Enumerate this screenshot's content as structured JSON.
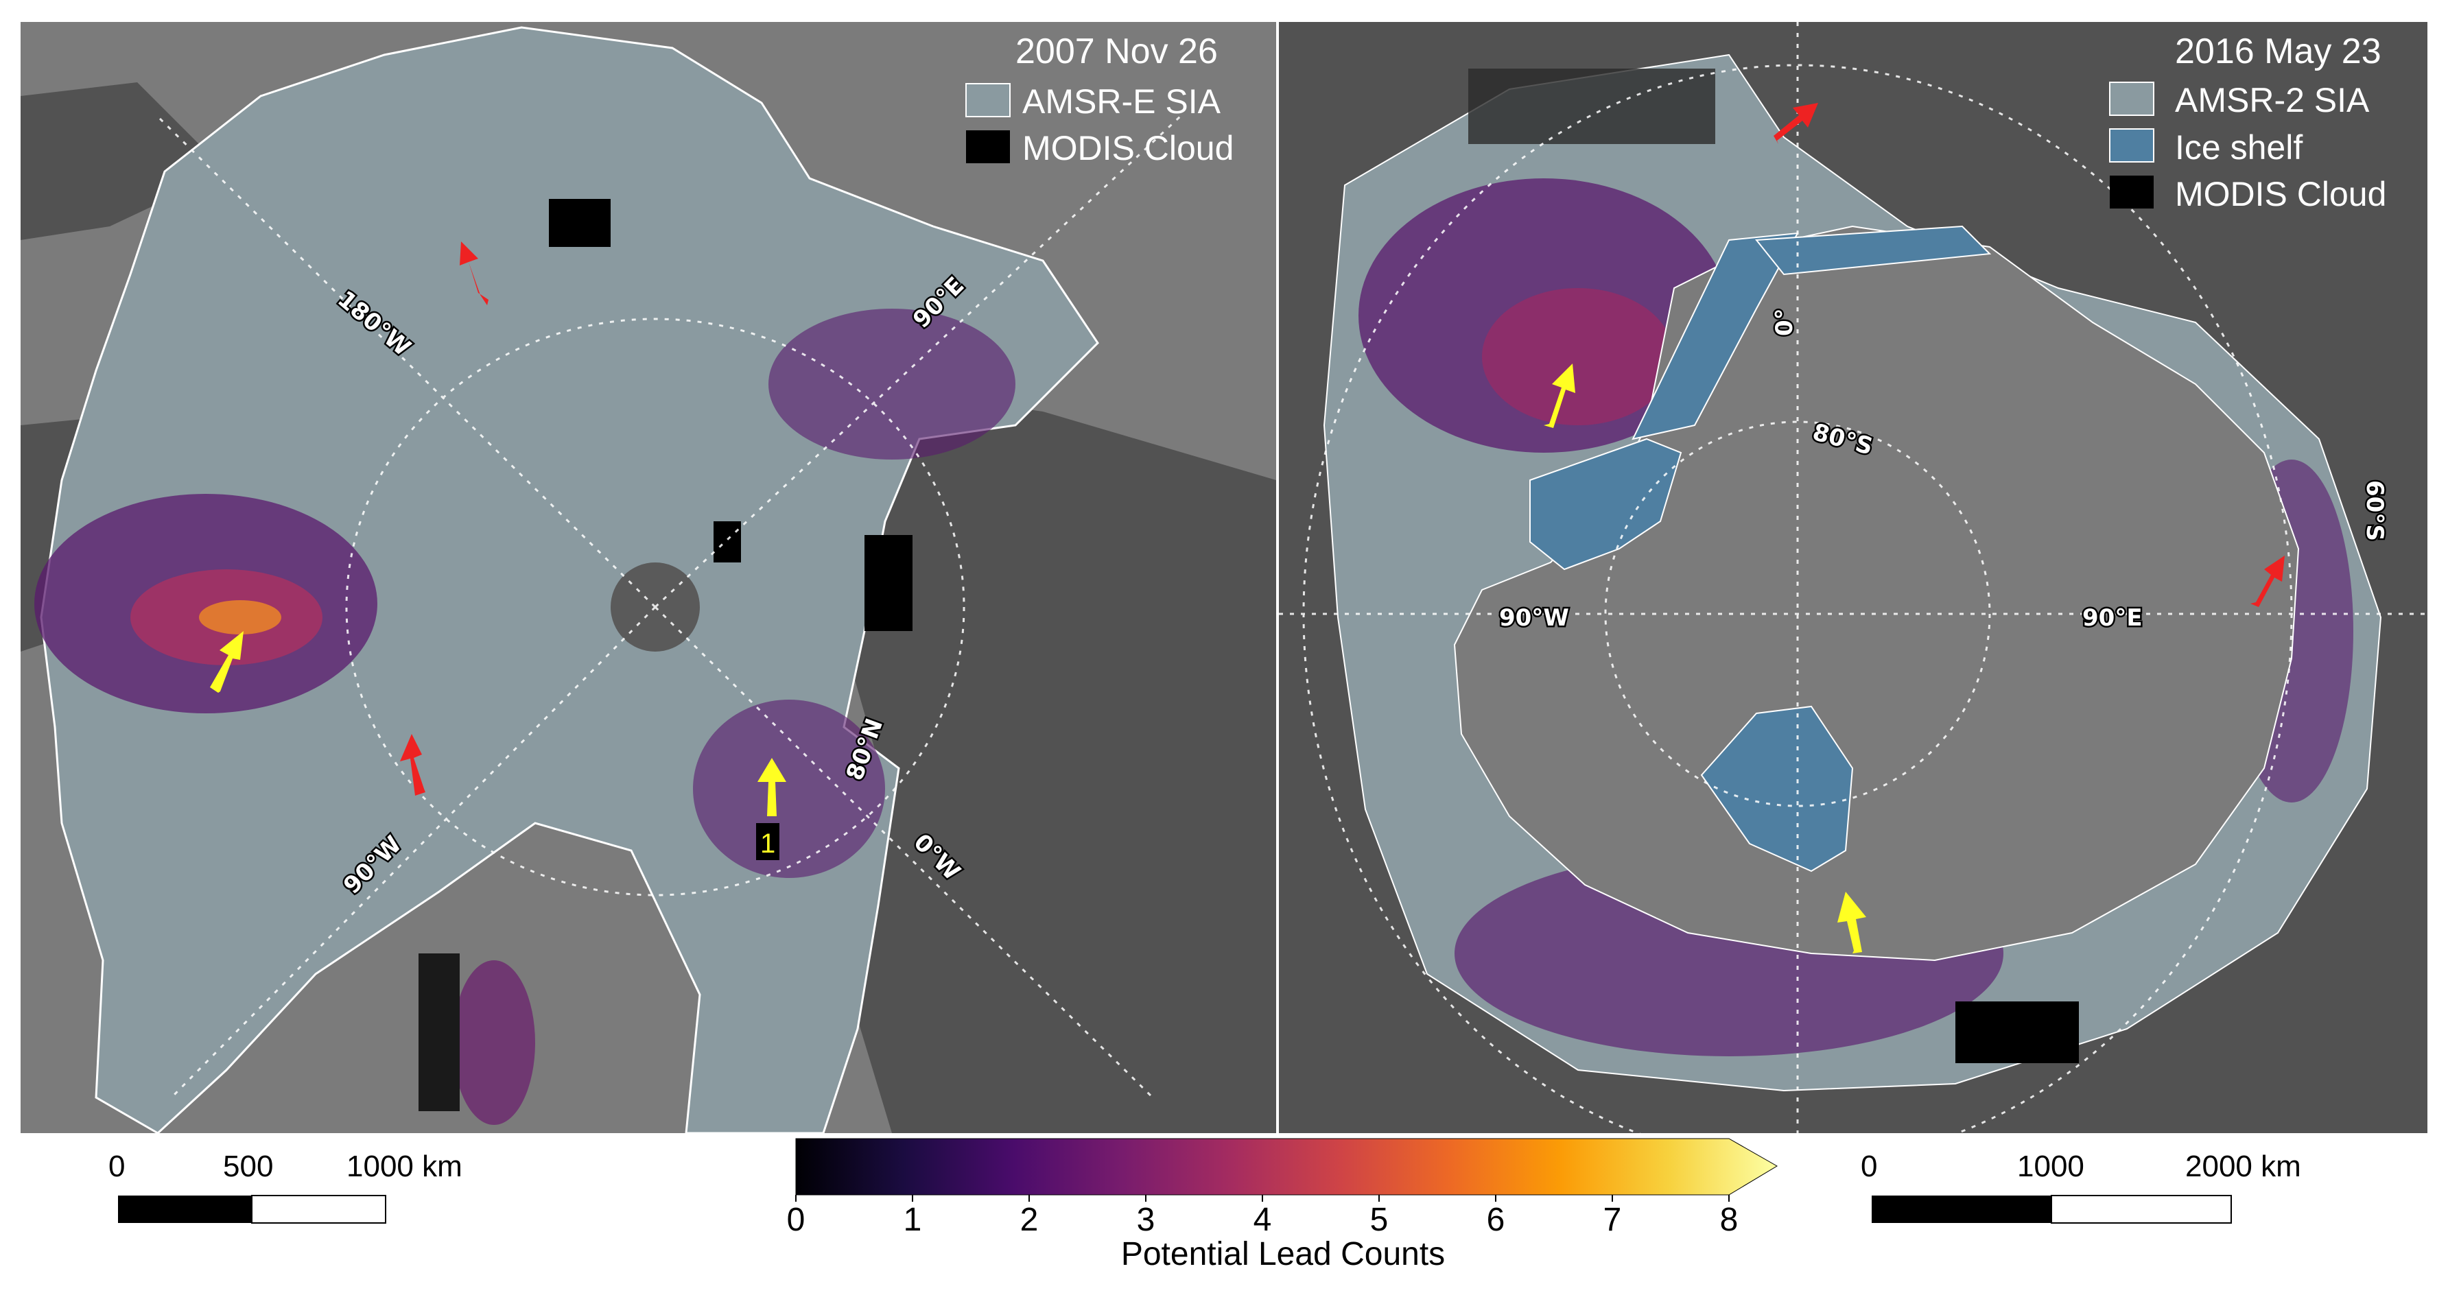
{
  "left_panel": {
    "date": "2007 Nov 26",
    "legend": [
      {
        "label": "AMSR-E SIA",
        "color": "#8a9aa0"
      },
      {
        "label": "MODIS Cloud",
        "color": "#000000"
      }
    ],
    "grid_labels": {
      "lon_180w": "180°W",
      "lon_90e": "90°E",
      "lon_90w": "90°W",
      "lon_0w": "0°W",
      "lat_80n": "80°N"
    },
    "marker_label": "1"
  },
  "right_panel": {
    "date": "2016 May 23",
    "legend": [
      {
        "label": "AMSR-2 SIA",
        "color": "#8a9aa0"
      },
      {
        "label": "Ice shelf",
        "color": "#4f7fa1"
      },
      {
        "label": "MODIS Cloud",
        "color": "#000000"
      }
    ],
    "grid_labels": {
      "lon_0": "0°",
      "lat_80s": "80°S",
      "lat_60s": "60°S",
      "lon_90w": "90°W",
      "lon_90e": "90°E"
    }
  },
  "scale_bar_left": {
    "ticks": [
      "0",
      "500",
      "1000 km"
    ]
  },
  "scale_bar_right": {
    "ticks": [
      "0",
      "1000",
      "2000 km"
    ]
  },
  "colorbar": {
    "title": "Potential Lead Counts",
    "ticks": [
      "0",
      "1",
      "2",
      "3",
      "4",
      "5",
      "6",
      "7",
      "8"
    ],
    "colors": [
      "#000004",
      "#1b0c41",
      "#4a0c6b",
      "#781c6d",
      "#a52c60",
      "#cf4446",
      "#ed6925",
      "#fb9b06",
      "#f7d13d",
      "#fcffa4"
    ]
  },
  "colors": {
    "land": "#7b7b7b",
    "ocean": "#525252",
    "sea_ice": "#8a9aa0",
    "ice_shelf": "#4f7fa1",
    "cloud": "#000000",
    "arrow_red": "#ee2222",
    "arrow_yellow": "#ffff22"
  }
}
